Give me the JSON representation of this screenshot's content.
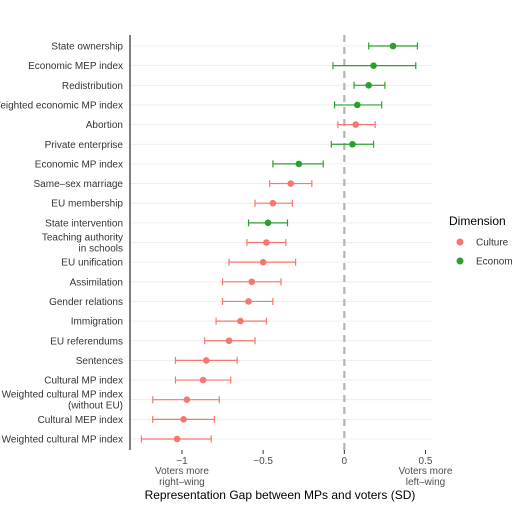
{
  "chart_data": {
    "type": "scatter",
    "subtype": "dot-and-whisker",
    "xlabel": "Representation Gap between MPs and voters (SD)",
    "xlim": [
      -1.32,
      0.54
    ],
    "x_ticks": [
      -1,
      -0.5,
      0,
      0.5
    ],
    "x_tick_labels": [
      "−1",
      "−0.5",
      "0",
      "0.5"
    ],
    "reference_line": {
      "x": 0,
      "style": "dashed"
    },
    "x_annotations": [
      {
        "x": -1,
        "text_lines": [
          "Voters more",
          "right–wing"
        ]
      },
      {
        "x": 0.5,
        "text_lines": [
          "Voters more",
          "left–wing"
        ]
      }
    ],
    "grid": "horizontal",
    "legend": {
      "title": "Dimension",
      "placement": "right",
      "entries": [
        {
          "label": "Culture",
          "color": "#F8766D"
        },
        {
          "label": "Econom",
          "color": "#2CA02C"
        }
      ]
    },
    "points": [
      {
        "label": [
          "State ownership"
        ],
        "dimension": "Econom",
        "x": 0.3,
        "lo": 0.15,
        "hi": 0.45
      },
      {
        "label": [
          "Economic MEP index"
        ],
        "dimension": "Econom",
        "x": 0.18,
        "lo": -0.07,
        "hi": 0.44
      },
      {
        "label": [
          "Redistribution"
        ],
        "dimension": "Econom",
        "x": 0.15,
        "lo": 0.06,
        "hi": 0.25
      },
      {
        "label": [
          "Weighted economic MP index"
        ],
        "dimension": "Econom",
        "x": 0.08,
        "lo": -0.06,
        "hi": 0.23
      },
      {
        "label": [
          "Abortion"
        ],
        "dimension": "Culture",
        "x": 0.07,
        "lo": -0.04,
        "hi": 0.19
      },
      {
        "label": [
          "Private enterprise"
        ],
        "dimension": "Econom",
        "x": 0.05,
        "lo": -0.08,
        "hi": 0.18
      },
      {
        "label": [
          "Economic MP index"
        ],
        "dimension": "Econom",
        "x": -0.28,
        "lo": -0.44,
        "hi": -0.13
      },
      {
        "label": [
          "Same–sex marriage"
        ],
        "dimension": "Culture",
        "x": -0.33,
        "lo": -0.46,
        "hi": -0.2
      },
      {
        "label": [
          "EU membership"
        ],
        "dimension": "Culture",
        "x": -0.44,
        "lo": -0.55,
        "hi": -0.32
      },
      {
        "label": [
          "State intervention"
        ],
        "dimension": "Econom",
        "x": -0.47,
        "lo": -0.59,
        "hi": -0.35
      },
      {
        "label": [
          "Teaching authority",
          "in schools"
        ],
        "dimension": "Culture",
        "x": -0.48,
        "lo": -0.6,
        "hi": -0.36
      },
      {
        "label": [
          "EU unification"
        ],
        "dimension": "Culture",
        "x": -0.5,
        "lo": -0.71,
        "hi": -0.3
      },
      {
        "label": [
          "Assimilation"
        ],
        "dimension": "Culture",
        "x": -0.57,
        "lo": -0.75,
        "hi": -0.39
      },
      {
        "label": [
          "Gender relations"
        ],
        "dimension": "Culture",
        "x": -0.59,
        "lo": -0.75,
        "hi": -0.44
      },
      {
        "label": [
          "Immigration"
        ],
        "dimension": "Culture",
        "x": -0.64,
        "lo": -0.79,
        "hi": -0.48
      },
      {
        "label": [
          "EU referendums"
        ],
        "dimension": "Culture",
        "x": -0.71,
        "lo": -0.86,
        "hi": -0.55
      },
      {
        "label": [
          "Sentences"
        ],
        "dimension": "Culture",
        "x": -0.85,
        "lo": -1.04,
        "hi": -0.66
      },
      {
        "label": [
          "Cultural MP index"
        ],
        "dimension": "Culture",
        "x": -0.87,
        "lo": -1.04,
        "hi": -0.7
      },
      {
        "label": [
          "Weighted cultural MP index",
          "(without EU)"
        ],
        "dimension": "Culture",
        "x": -0.97,
        "lo": -1.18,
        "hi": -0.77
      },
      {
        "label": [
          "Cultural MEP index"
        ],
        "dimension": "Culture",
        "x": -0.99,
        "lo": -1.18,
        "hi": -0.8
      },
      {
        "label": [
          "Weighted cultural MP index"
        ],
        "dimension": "Culture",
        "x": -1.03,
        "lo": -1.25,
        "hi": -0.82
      }
    ]
  }
}
